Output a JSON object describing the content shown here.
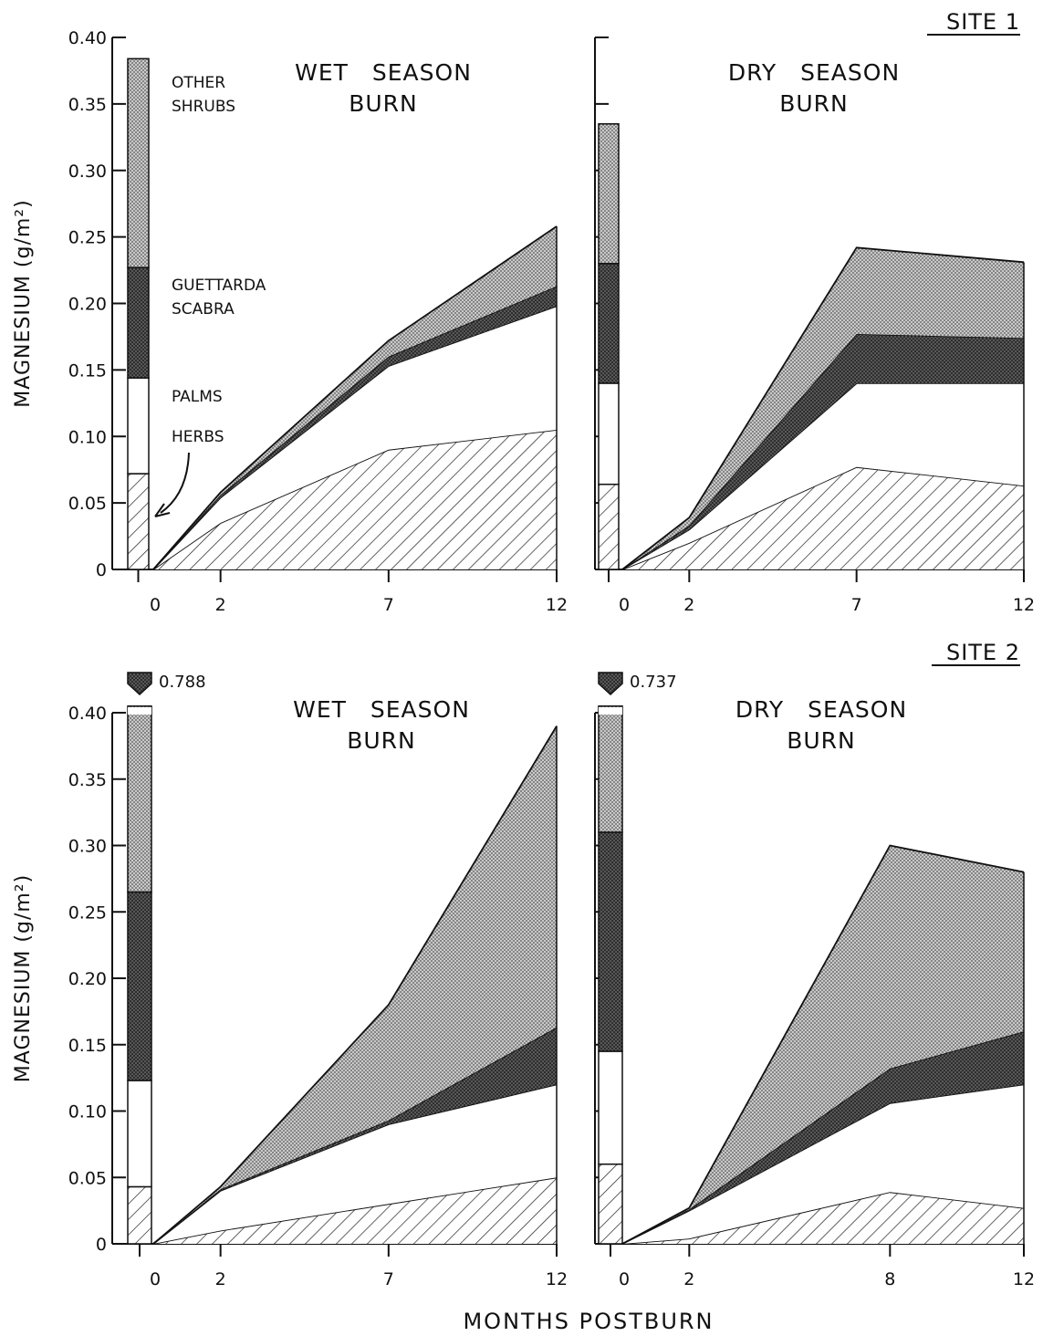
{
  "x_axis_title": "MONTHS POSTBURN",
  "colors": {
    "ink": "#111111",
    "other_shrubs": "#b9b9b9",
    "guettarda": "#3b3b3b",
    "palms": "#ffffff",
    "herbs_hatch": "#222222"
  },
  "legend": {
    "other_shrubs": [
      "OTHER",
      "SHRUBS"
    ],
    "guettarda": [
      "GUETTARDA",
      "SCABRA"
    ],
    "palms": "PALMS",
    "herbs": "HERBS"
  },
  "sites": [
    {
      "label": "SITE 1"
    },
    {
      "label": "SITE 2"
    }
  ],
  "chart_data": [
    {
      "type": "area",
      "site": "SITE 1",
      "title": [
        "WET SEASON",
        "BURN"
      ],
      "ylabel": "MAGNESIUM (g/m²)",
      "ylim": [
        0,
        0.4
      ],
      "yticks": [
        "0",
        "0.05",
        "0.10",
        "0.15",
        "0.20",
        "0.25",
        "0.30",
        "0.35",
        "0.40"
      ],
      "x": [
        0,
        2,
        7,
        12
      ],
      "xtick_labels": [
        "0",
        "2",
        "7",
        "12"
      ],
      "preburn_label": "0",
      "preburn_stack": {
        "herbs": 0.072,
        "palms": 0.072,
        "guettarda_scabra": 0.083,
        "other_shrubs": 0.157
      },
      "series": [
        {
          "name": "HERBS",
          "values": [
            0,
            0.035,
            0.09,
            0.105
          ]
        },
        {
          "name": "PALMS",
          "values": [
            0,
            0.019,
            0.063,
            0.093
          ]
        },
        {
          "name": "GUETTARDA SCABRA",
          "values": [
            0,
            0.002,
            0.007,
            0.015
          ]
        },
        {
          "name": "OTHER SHRUBS",
          "values": [
            0,
            0.002,
            0.012,
            0.045
          ]
        }
      ]
    },
    {
      "type": "area",
      "site": "SITE 1",
      "title": [
        "DRY SEASON",
        "BURN"
      ],
      "ylabel": "",
      "ylim": [
        0,
        0.4
      ],
      "yticks": [],
      "x": [
        0,
        2,
        7,
        12
      ],
      "xtick_labels": [
        "0",
        "2",
        "7",
        "12"
      ],
      "preburn_label": "0",
      "preburn_stack": {
        "herbs": 0.064,
        "palms": 0.076,
        "guettarda_scabra": 0.09,
        "other_shrubs": 0.105
      },
      "series": [
        {
          "name": "HERBS",
          "values": [
            0,
            0.02,
            0.077,
            0.063
          ]
        },
        {
          "name": "PALMS",
          "values": [
            0,
            0.01,
            0.063,
            0.077
          ]
        },
        {
          "name": "GUETTARDA SCABRA",
          "values": [
            0,
            0.003,
            0.037,
            0.034
          ]
        },
        {
          "name": "OTHER SHRUBS",
          "values": [
            0,
            0.006,
            0.065,
            0.057
          ]
        }
      ]
    },
    {
      "type": "area",
      "site": "SITE 2",
      "title": [
        "WET SEASON",
        "BURN"
      ],
      "ylabel": "MAGNESIUM (g/m²)",
      "ylim": [
        0,
        0.4
      ],
      "yticks": [
        "0",
        "0.05",
        "0.10",
        "0.15",
        "0.20",
        "0.25",
        "0.30",
        "0.35",
        "0.40"
      ],
      "x": [
        0,
        2,
        7,
        12
      ],
      "xtick_labels": [
        "0",
        "2",
        "7",
        "12"
      ],
      "preburn_label": "0",
      "preburn_total_label": "0.788",
      "preburn_stack": {
        "herbs": 0.043,
        "palms": 0.08,
        "guettarda_scabra": 0.142,
        "other_shrubs": 0.523
      },
      "series": [
        {
          "name": "HERBS",
          "values": [
            0,
            0.01,
            0.03,
            0.05
          ]
        },
        {
          "name": "PALMS",
          "values": [
            0,
            0.03,
            0.06,
            0.07
          ]
        },
        {
          "name": "GUETTARDA SCABRA",
          "values": [
            0,
            0.001,
            0.003,
            0.043
          ]
        },
        {
          "name": "OTHER SHRUBS",
          "values": [
            0,
            0.002,
            0.087,
            0.227
          ]
        }
      ]
    },
    {
      "type": "area",
      "site": "SITE 2",
      "title": [
        "DRY SEASON",
        "BURN"
      ],
      "ylabel": "",
      "ylim": [
        0,
        0.4
      ],
      "yticks": [],
      "x": [
        0,
        2,
        8,
        12
      ],
      "xtick_labels": [
        "0",
        "2",
        "8",
        "12"
      ],
      "preburn_label": "0",
      "preburn_total_label": "0.737",
      "preburn_stack": {
        "herbs": 0.06,
        "palms": 0.085,
        "guettarda_scabra": 0.165,
        "other_shrubs": 0.427
      },
      "series": [
        {
          "name": "HERBS",
          "values": [
            0,
            0.004,
            0.039,
            0.027
          ]
        },
        {
          "name": "PALMS",
          "values": [
            0,
            0.021,
            0.067,
            0.093
          ]
        },
        {
          "name": "GUETTARDA SCABRA",
          "values": [
            0,
            0.001,
            0.026,
            0.04
          ]
        },
        {
          "name": "OTHER SHRUBS",
          "values": [
            0,
            0.001,
            0.168,
            0.12
          ]
        }
      ]
    }
  ]
}
